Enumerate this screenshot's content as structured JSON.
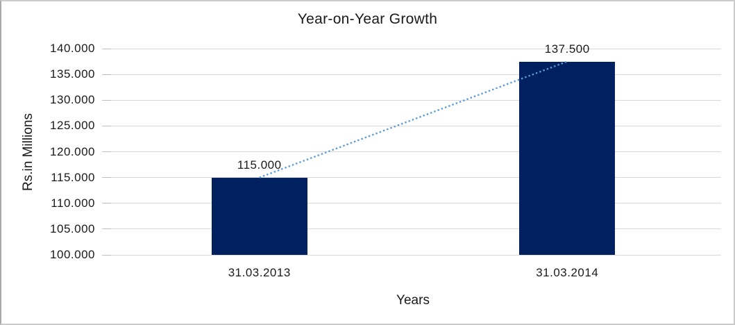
{
  "chart_data": {
    "type": "bar",
    "title": "Year-on-Year Growth",
    "xlabel": "Years",
    "ylabel": "Rs.in Millions",
    "categories": [
      "31.03.2013",
      "31.03.2014"
    ],
    "values": [
      115000,
      137500
    ],
    "data_labels": [
      "115.000",
      "137.500"
    ],
    "ylim": [
      100000,
      140000
    ],
    "ytick_step": 5000,
    "ytick_labels": [
      "100.000",
      "105.000",
      "110.000",
      "115.000",
      "120.000",
      "125.000",
      "130.000",
      "135.000",
      "140.000"
    ],
    "grid": true,
    "legend": "none",
    "bar_color": "#002060",
    "gridline_color": "#d9d9d9",
    "tick_color": "#bfbfbf",
    "trendline": {
      "style": "dotted",
      "color": "#5b9bd5"
    }
  }
}
